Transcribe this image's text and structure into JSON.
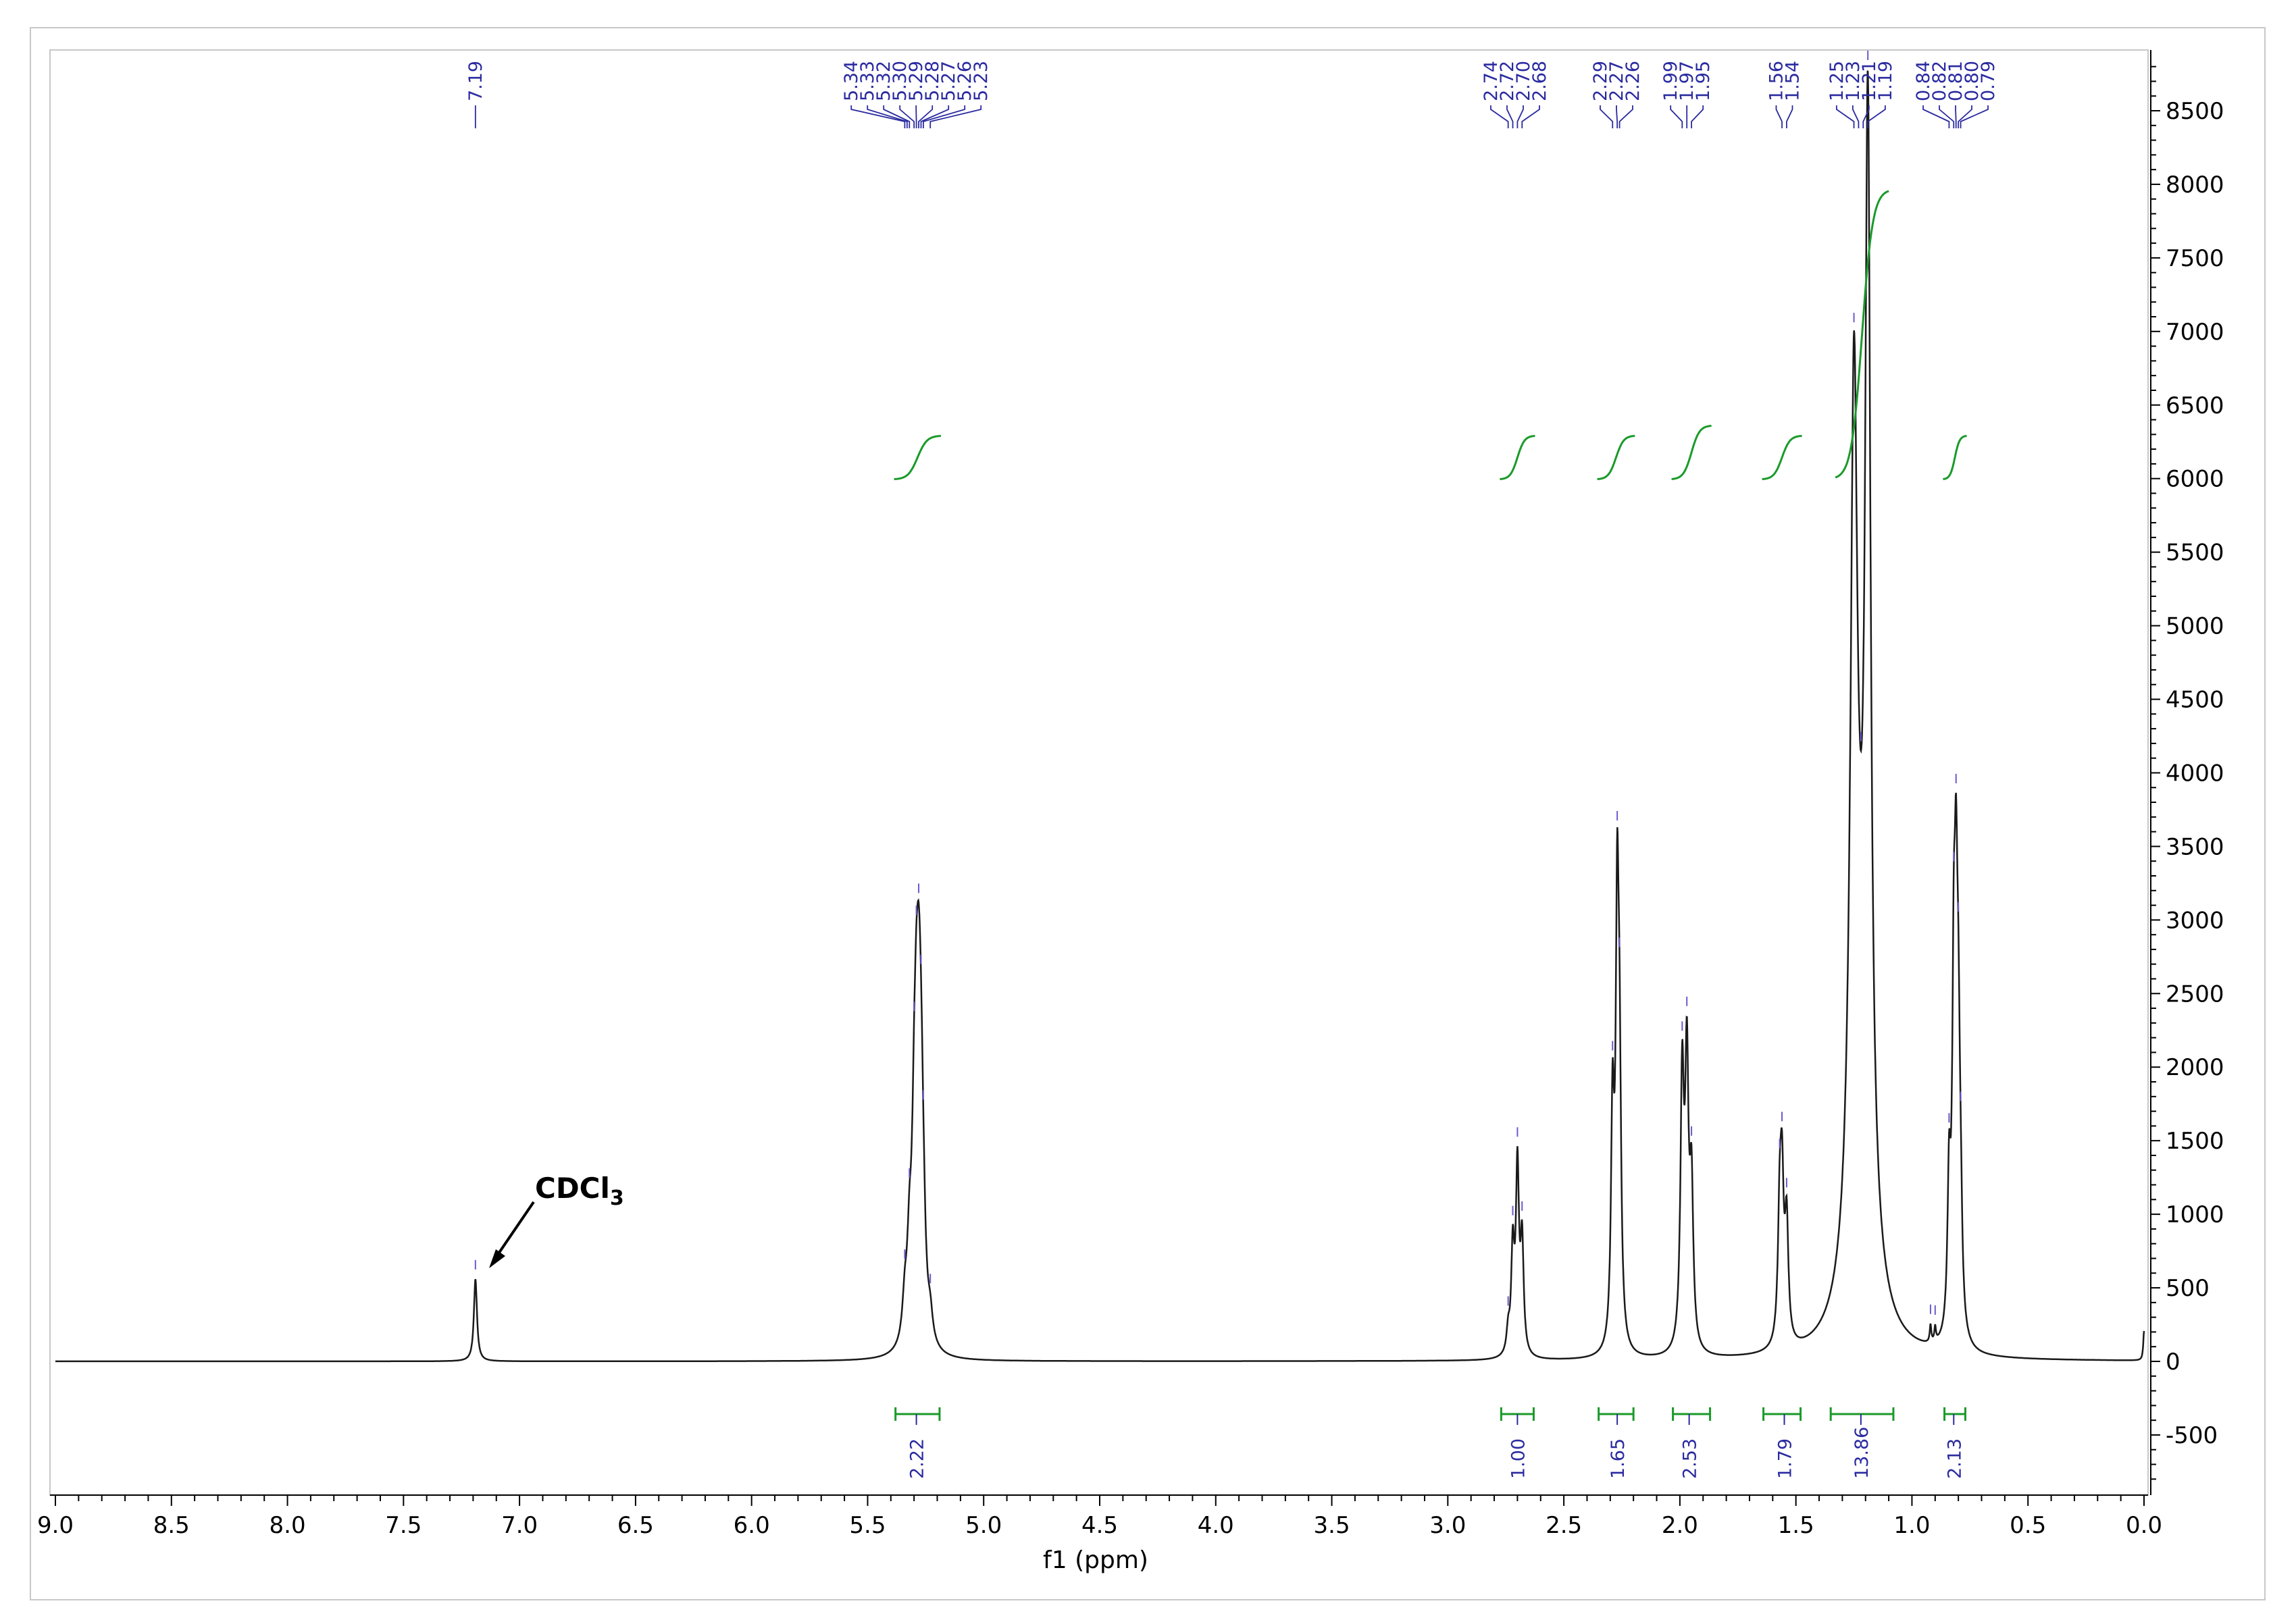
{
  "chart_data": {
    "type": "line",
    "xlabel": "f1 (ppm)",
    "ylabel": "",
    "xlim": [
      9.0,
      0.0
    ],
    "ylim": [
      -900,
      8900
    ],
    "x_axis_reversed": true,
    "x_ticks": [
      "9.0",
      "8.5",
      "8.0",
      "7.5",
      "7.0",
      "6.5",
      "6.0",
      "5.5",
      "5.0",
      "4.5",
      "4.0",
      "3.5",
      "3.0",
      "2.5",
      "2.0",
      "1.5",
      "1.0",
      "0.5",
      "0.0"
    ],
    "y_ticks": [
      "8500",
      "8000",
      "7500",
      "7000",
      "6500",
      "6000",
      "5500",
      "5000",
      "4500",
      "4000",
      "3500",
      "3000",
      "2500",
      "2000",
      "1500",
      "1000",
      "500",
      "0",
      "-500"
    ],
    "y_axis_side": "right",
    "grid": false,
    "line_color": "#1a1a1a",
    "integral_color": "#1a9a2a",
    "peak_label_color": "#2a2aa0",
    "peaks": [
      {
        "x": 7.19,
        "y": 560,
        "width": 0.008
      },
      {
        "x": 5.34,
        "y": 260,
        "width": 0.012
      },
      {
        "x": 5.32,
        "y": 520,
        "width": 0.012
      },
      {
        "x": 5.3,
        "y": 900,
        "width": 0.012
      },
      {
        "x": 5.29,
        "y": 1200,
        "width": 0.012
      },
      {
        "x": 5.28,
        "y": 1350,
        "width": 0.012
      },
      {
        "x": 5.27,
        "y": 1100,
        "width": 0.012
      },
      {
        "x": 5.26,
        "y": 420,
        "width": 0.012
      },
      {
        "x": 5.23,
        "y": 160,
        "width": 0.012
      },
      {
        "x": 2.74,
        "y": 150,
        "width": 0.008
      },
      {
        "x": 2.72,
        "y": 700,
        "width": 0.008
      },
      {
        "x": 2.7,
        "y": 1250,
        "width": 0.008
      },
      {
        "x": 2.68,
        "y": 750,
        "width": 0.008
      },
      {
        "x": 2.29,
        "y": 1550,
        "width": 0.008
      },
      {
        "x": 2.27,
        "y": 2780,
        "width": 0.008
      },
      {
        "x": 2.26,
        "y": 1550,
        "width": 0.008
      },
      {
        "x": 1.99,
        "y": 1800,
        "width": 0.009
      },
      {
        "x": 1.97,
        "y": 1850,
        "width": 0.009
      },
      {
        "x": 1.95,
        "y": 1050,
        "width": 0.009
      },
      {
        "x": 1.57,
        "y": 800,
        "width": 0.009
      },
      {
        "x": 1.56,
        "y": 1000,
        "width": 0.009
      },
      {
        "x": 1.54,
        "y": 800,
        "width": 0.009
      },
      {
        "x": 1.25,
        "y": 5500,
        "width": 0.018
      },
      {
        "x": 1.19,
        "y": 7200,
        "width": 0.014
      },
      {
        "x": 1.22,
        "y": 1400,
        "width": 0.06
      },
      {
        "x": 0.84,
        "y": 1000,
        "width": 0.008
      },
      {
        "x": 0.82,
        "y": 2000,
        "width": 0.008
      },
      {
        "x": 0.81,
        "y": 2300,
        "width": 0.008
      },
      {
        "x": 0.8,
        "y": 1500,
        "width": 0.008
      },
      {
        "x": 0.79,
        "y": 600,
        "width": 0.008
      },
      {
        "x": 0.92,
        "y": 120,
        "width": 0.004
      },
      {
        "x": 0.9,
        "y": 100,
        "width": 0.004
      },
      {
        "x": 0.0,
        "y": 200,
        "width": 0.004
      }
    ],
    "peak_labels": [
      {
        "text": "7.19",
        "x": 7.19
      },
      {
        "text": "5.34",
        "x": 5.34
      },
      {
        "text": "5.33",
        "x": 5.33
      },
      {
        "text": "5.32",
        "x": 5.32
      },
      {
        "text": "5.30",
        "x": 5.3
      },
      {
        "text": "5.29",
        "x": 5.29
      },
      {
        "text": "5.28",
        "x": 5.28
      },
      {
        "text": "5.27",
        "x": 5.27
      },
      {
        "text": "5.26",
        "x": 5.26
      },
      {
        "text": "5.23",
        "x": 5.23
      },
      {
        "text": "2.74",
        "x": 2.74
      },
      {
        "text": "2.72",
        "x": 2.72
      },
      {
        "text": "2.70",
        "x": 2.7
      },
      {
        "text": "2.68",
        "x": 2.68
      },
      {
        "text": "2.29",
        "x": 2.29
      },
      {
        "text": "2.27",
        "x": 2.27
      },
      {
        "text": "2.26",
        "x": 2.26
      },
      {
        "text": "1.99",
        "x": 1.99
      },
      {
        "text": "1.97",
        "x": 1.97
      },
      {
        "text": "1.95",
        "x": 1.95
      },
      {
        "text": "1.56",
        "x": 1.56
      },
      {
        "text": "1.54",
        "x": 1.54
      },
      {
        "text": "1.25",
        "x": 1.25
      },
      {
        "text": "1.23",
        "x": 1.23
      },
      {
        "text": "1.21",
        "x": 1.21
      },
      {
        "text": "1.19",
        "x": 1.19
      },
      {
        "text": "0.84",
        "x": 0.84
      },
      {
        "text": "0.82",
        "x": 0.82
      },
      {
        "text": "0.81",
        "x": 0.81
      },
      {
        "text": "0.80",
        "x": 0.8
      },
      {
        "text": "0.79",
        "x": 0.79
      }
    ],
    "integrals": [
      {
        "label": "2.22",
        "from": 5.38,
        "to": 5.19,
        "center": 5.29
      },
      {
        "label": "1.00",
        "from": 2.77,
        "to": 2.63,
        "center": 2.7
      },
      {
        "label": "1.65",
        "from": 2.35,
        "to": 2.2,
        "center": 2.27
      },
      {
        "label": "2.53",
        "from": 2.03,
        "to": 1.87,
        "center": 1.96
      },
      {
        "label": "1.79",
        "from": 1.64,
        "to": 1.48,
        "center": 1.55
      },
      {
        "label": "13.86",
        "from": 1.35,
        "to": 1.08,
        "center": 1.22
      },
      {
        "label": "2.13",
        "from": 0.86,
        "to": 0.77,
        "center": 0.82
      }
    ],
    "annotations": [
      {
        "text_main": "CDCl",
        "text_sub": "3",
        "points_to_x": 7.19
      }
    ]
  }
}
